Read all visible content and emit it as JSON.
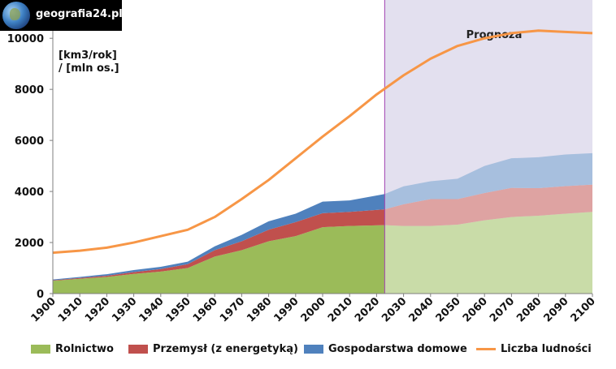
{
  "logo": {
    "text": "geografia24.pl"
  },
  "chart_data": {
    "type": "area",
    "ylabel": "[km3/rok]\n/ [mln os.]",
    "ylim": [
      0,
      11000
    ],
    "yticks": [
      0,
      2000,
      4000,
      6000,
      8000,
      10000
    ],
    "xlim": [
      1900,
      2100
    ],
    "xticks": [
      1900,
      1910,
      1920,
      1930,
      1940,
      1950,
      1960,
      1970,
      1980,
      1990,
      2000,
      2010,
      2020,
      2030,
      2040,
      2050,
      2060,
      2070,
      2080,
      2090,
      2100
    ],
    "forecast": {
      "label": "Prognoza",
      "from": 2023,
      "to": 2100,
      "fill": "#e3e0ef",
      "divider": "#a040b0"
    },
    "stacked_series": [
      {
        "name": "Rolnictwo",
        "color": "#9bbb59",
        "forecast_color": "#c9dca8",
        "x": [
          1900,
          1910,
          1920,
          1930,
          1940,
          1950,
          1960,
          1970,
          1980,
          1990,
          2000,
          2010,
          2023,
          2030,
          2040,
          2050,
          2060,
          2070,
          2080,
          2090,
          2100
        ],
        "values": [
          500,
          580,
          650,
          770,
          860,
          1000,
          1450,
          1700,
          2050,
          2250,
          2600,
          2650,
          2680,
          2650,
          2650,
          2700,
          2870,
          3000,
          3050,
          3130,
          3200
        ]
      },
      {
        "name": "Przemysł (z energetyką)",
        "color": "#c0504d",
        "forecast_color": "#dea3a2",
        "x": [
          1900,
          1910,
          1920,
          1930,
          1940,
          1950,
          1960,
          1970,
          1980,
          1990,
          2000,
          2010,
          2023,
          2030,
          2040,
          2050,
          2060,
          2070,
          2080,
          2090,
          2100
        ],
        "values": [
          20,
          30,
          50,
          70,
          100,
          150,
          250,
          350,
          450,
          550,
          550,
          550,
          620,
          850,
          1050,
          1000,
          1070,
          1140,
          1080,
          1080,
          1070
        ]
      },
      {
        "name": "Gospodarstwa domowe",
        "color": "#4f81bd",
        "forecast_color": "#a7bfde",
        "x": [
          1900,
          1910,
          1920,
          1930,
          1940,
          1950,
          1960,
          1970,
          1980,
          1990,
          2000,
          2010,
          2023,
          2030,
          2040,
          2050,
          2060,
          2070,
          2080,
          2090,
          2100
        ],
        "values": [
          30,
          40,
          60,
          80,
          90,
          100,
          150,
          250,
          330,
          330,
          450,
          450,
          600,
          700,
          700,
          800,
          1060,
          1160,
          1210,
          1240,
          1230
        ]
      }
    ],
    "line_series": {
      "name": "Liczba ludności",
      "color": "#f79646",
      "x": [
        1900,
        1910,
        1920,
        1930,
        1940,
        1950,
        1960,
        1970,
        1980,
        1990,
        2000,
        2010,
        2020,
        2030,
        2040,
        2050,
        2060,
        2070,
        2080,
        2090,
        2100
      ],
      "values": [
        1600,
        1680,
        1800,
        2000,
        2250,
        2500,
        3000,
        3700,
        4450,
        5300,
        6150,
        6950,
        7800,
        8550,
        9200,
        9700,
        10000,
        10200,
        10300,
        10250,
        10200
      ]
    }
  }
}
